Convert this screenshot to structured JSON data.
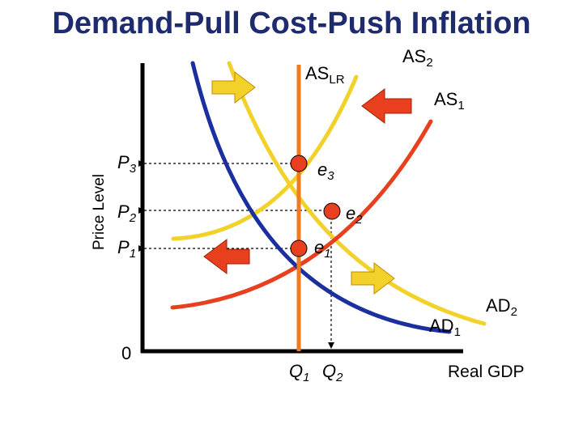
{
  "title": "Demand-Pull Cost-Push Inflation",
  "axes": {
    "y_label": "Price Level",
    "x_label": "Real GDP",
    "origin": "0"
  },
  "curves": {
    "aslr": {
      "base": "AS",
      "sub": "LR",
      "color": "#f07a1e"
    },
    "as1": {
      "base": "AS",
      "sub": "1",
      "color": "#e8401e"
    },
    "as2": {
      "base": "AS",
      "sub": "2",
      "color": "#f2d22a"
    },
    "ad1": {
      "base": "AD",
      "sub": "1",
      "color": "#1c2f9e"
    },
    "ad2": {
      "base": "AD",
      "sub": "2",
      "color": "#f2d22a"
    }
  },
  "price_levels": [
    {
      "base": "P",
      "sub": "3"
    },
    {
      "base": "P",
      "sub": "2"
    },
    {
      "base": "P",
      "sub": "1"
    }
  ],
  "quantities": [
    {
      "base": "Q",
      "sub": "1"
    },
    {
      "base": "Q",
      "sub": "2"
    }
  ],
  "equilibria": [
    {
      "base": "e",
      "sub": "3"
    },
    {
      "base": "e",
      "sub": "2"
    },
    {
      "base": "e",
      "sub": "1"
    }
  ],
  "arrows": {
    "ad_shift_right": {
      "direction": "right",
      "color": "#f2d22a"
    },
    "as_shift_left": {
      "direction": "left",
      "color": "#e8401e"
    }
  },
  "colors": {
    "title": "#1e2b6f",
    "point_fill": "#e8401e",
    "axis": "#000000"
  }
}
